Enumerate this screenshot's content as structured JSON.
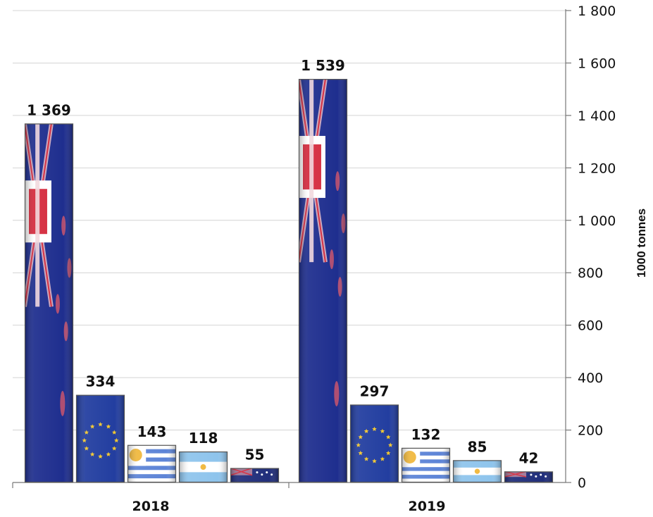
{
  "chart_data": {
    "type": "bar",
    "categories": [
      "2018",
      "2019"
    ],
    "series": [
      {
        "icon": "new-zealand-flag",
        "values": [
          1369,
          1539
        ],
        "labels": [
          "1 369",
          "1 539"
        ]
      },
      {
        "icon": "eu-flag",
        "values": [
          334,
          297
        ],
        "labels": [
          "334",
          "297"
        ]
      },
      {
        "icon": "uruguay-flag",
        "values": [
          143,
          132
        ],
        "labels": [
          "143",
          "132"
        ]
      },
      {
        "icon": "argentina-flag",
        "values": [
          118,
          85
        ],
        "labels": [
          "118",
          "85"
        ]
      },
      {
        "icon": "australia-flag",
        "values": [
          55,
          42
        ],
        "labels": [
          "55",
          "42"
        ]
      }
    ],
    "ylabel": "1000 tonnes",
    "ylim": [
      0,
      1800
    ],
    "yticks": [
      0,
      200,
      400,
      600,
      800,
      1000,
      1200,
      1400,
      1600,
      1800
    ],
    "ytick_labels": [
      "0",
      "200",
      "400",
      "600",
      "800",
      "1 000",
      "1 200",
      "1 400",
      "1 600",
      "1 800"
    ],
    "y_axis_side": "right",
    "grid": true,
    "legend": "none",
    "colors": {
      "nz_blue": "#1a2a8c",
      "nz_red": "#d4273a",
      "eu_blue": "#1e3a9e",
      "eu_star": "#f2c62b",
      "uy_blue": "#5a82d6",
      "ar_blue": "#8cc3ec",
      "ar_sun": "#f0b73a",
      "au_blue": "#1c2a78"
    }
  }
}
